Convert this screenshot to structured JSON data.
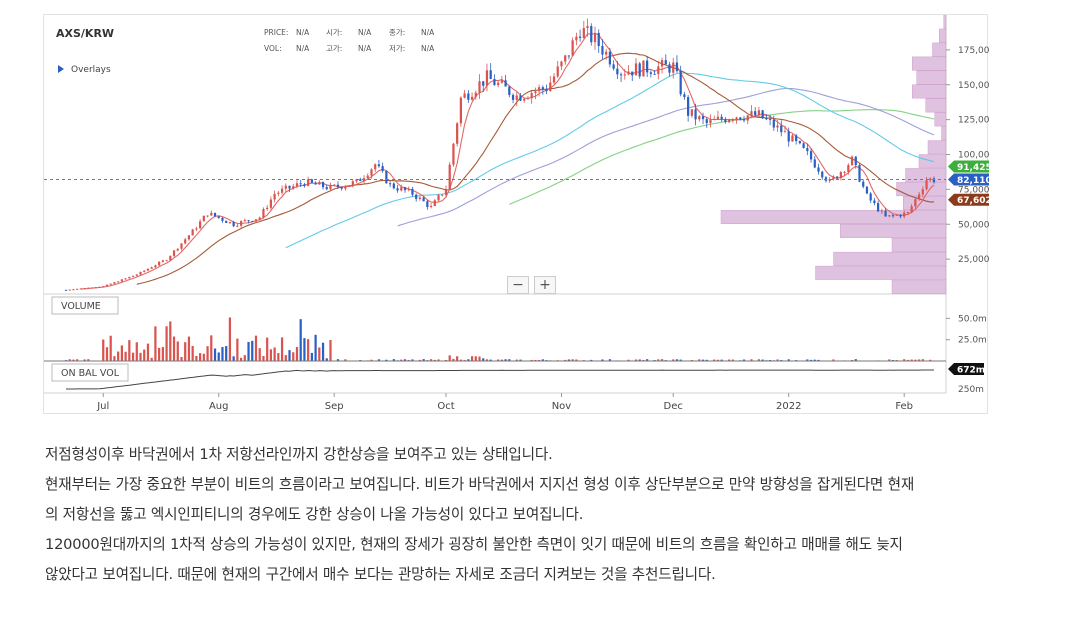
{
  "header": {
    "symbol": "AXS/KRW",
    "price_label": "PRICE:",
    "price_value": "N/A",
    "open_label": "시가:",
    "open_value": "N/A",
    "high_label": "고가:",
    "high_value": "N/A",
    "volume_label": "VOL:",
    "volume_value": "N/A",
    "close_label": "종가:",
    "close_value": "N/A",
    "low_label": "저가:",
    "low_value": "N/A",
    "overlays_label": "Overlays"
  },
  "zoom": {
    "minus": "−",
    "plus": "+"
  },
  "panels": {
    "volume_label": "VOLUME",
    "obv_label": "ON BAL VOL"
  },
  "badges": {
    "ma_top": "91,425",
    "last_price": "82,110",
    "ma_low": "67,602",
    "obv": "672m"
  },
  "colors": {
    "up": "#d9534f",
    "down": "#2a5fc4",
    "ma5": "#e06060",
    "ma20": "#a0522d",
    "ma60": "#5bc8e8",
    "ma90": "#9a9ad8",
    "ma120": "#7fcf7f",
    "profile": "#d8b4d8",
    "badge_green": "#3cae3c",
    "badge_blue": "#2a5fc4",
    "badge_brown": "#8b3a1a"
  },
  "article": {
    "p1": "저점형성이후 바닥권에서 1차 저항선라인까지 강한상승을 보여주고 있는 상태입니다.",
    "p2a": "현재부터는 가장 중요한 부분이 비트의 흐름이라고 보여집니다. 비트가 바닥권에서 지지선 형성 이후 상단부분으로 만약 방향성을 잡게된다면 현재",
    "p2b": "의 저항선을 뚫고 엑시인피티니의 경우에도 강한 상승이 나올 가능성이 있다고 보여집니다.",
    "p3a": "120000원대까지의 1차적 상승의 가능성이 있지만, 현재의 장세가 굉장히 불안한 측면이 잇기 때문에 비트의 흐름을 확인하고 매매를 해도 늦지",
    "p3b": "않았다고 보여집니다. 때문에 현재의 구간에서 매수 보다는 관망하는 자세로 조금더 지켜보는 것을 추천드립니다."
  },
  "chart_data": {
    "type": "candlestick",
    "title": "AXS/KRW",
    "x_ticks": [
      "Jul",
      "Aug",
      "Sep",
      "Oct",
      "Nov",
      "Dec",
      "2022",
      "Feb"
    ],
    "price_ticks": [
      "175,000",
      "150,000",
      "125,000",
      "100,000",
      "75,000",
      "50,000",
      "25,000"
    ],
    "price_tick_values": [
      175000,
      150000,
      125000,
      100000,
      75000,
      50000,
      25000
    ],
    "ylim": [
      0,
      200000
    ],
    "volume_ticks": [
      "50.0m",
      "25.0m"
    ],
    "volume_tick_values": [
      50,
      25
    ],
    "volume_ylim": [
      0,
      75
    ],
    "obv_ticks": [
      "250m"
    ],
    "x_range": [
      "2021-06-21",
      "2022-02-09"
    ],
    "last_price": 82110,
    "close_path": [
      {
        "date": "2021-06-21",
        "value": 3000
      },
      {
        "date": "2021-07-01",
        "value": 5500
      },
      {
        "date": "2021-07-10",
        "value": 14000
      },
      {
        "date": "2021-07-18",
        "value": 25000
      },
      {
        "date": "2021-07-25",
        "value": 45000
      },
      {
        "date": "2021-07-29",
        "value": 58000
      },
      {
        "date": "2021-08-05",
        "value": 50000
      },
      {
        "date": "2021-08-12",
        "value": 55000
      },
      {
        "date": "2021-08-16",
        "value": 72000
      },
      {
        "date": "2021-08-24",
        "value": 80000
      },
      {
        "date": "2021-08-31",
        "value": 76000
      },
      {
        "date": "2021-09-07",
        "value": 80000
      },
      {
        "date": "2021-09-12",
        "value": 93000
      },
      {
        "date": "2021-09-16",
        "value": 78000
      },
      {
        "date": "2021-09-22",
        "value": 72000
      },
      {
        "date": "2021-09-27",
        "value": 62000
      },
      {
        "date": "2021-10-01",
        "value": 76000
      },
      {
        "date": "2021-10-05",
        "value": 140000
      },
      {
        "date": "2021-10-12",
        "value": 155000
      },
      {
        "date": "2021-10-20",
        "value": 142000
      },
      {
        "date": "2021-10-28",
        "value": 148000
      },
      {
        "date": "2021-11-02",
        "value": 168000
      },
      {
        "date": "2021-11-06",
        "value": 190000
      },
      {
        "date": "2021-11-10",
        "value": 182000
      },
      {
        "date": "2021-11-17",
        "value": 160000
      },
      {
        "date": "2021-11-24",
        "value": 162000
      },
      {
        "date": "2021-12-01",
        "value": 163000
      },
      {
        "date": "2021-12-05",
        "value": 130000
      },
      {
        "date": "2021-12-10",
        "value": 122000
      },
      {
        "date": "2021-12-17",
        "value": 128000
      },
      {
        "date": "2021-12-24",
        "value": 128000
      },
      {
        "date": "2021-12-31",
        "value": 115000
      },
      {
        "date": "2022-01-06",
        "value": 100000
      },
      {
        "date": "2022-01-12",
        "value": 80000
      },
      {
        "date": "2022-01-18",
        "value": 96000
      },
      {
        "date": "2022-01-22",
        "value": 70000
      },
      {
        "date": "2022-01-27",
        "value": 55000
      },
      {
        "date": "2022-02-02",
        "value": 58000
      },
      {
        "date": "2022-02-07",
        "value": 82110
      }
    ],
    "series": [
      {
        "name": "MA5",
        "values": []
      },
      {
        "name": "MA20",
        "values": []
      },
      {
        "name": "MA60",
        "values": []
      },
      {
        "name": "MA90",
        "values": []
      },
      {
        "name": "MA120",
        "values": []
      }
    ],
    "volume_profile": [
      {
        "price": 195000,
        "size": 0.01
      },
      {
        "price": 185000,
        "size": 0.03
      },
      {
        "price": 175000,
        "size": 0.06
      },
      {
        "price": 165000,
        "size": 0.15
      },
      {
        "price": 155000,
        "size": 0.13
      },
      {
        "price": 145000,
        "size": 0.15
      },
      {
        "price": 135000,
        "size": 0.09
      },
      {
        "price": 125000,
        "size": 0.05
      },
      {
        "price": 115000,
        "size": 0.02
      },
      {
        "price": 105000,
        "size": 0.08
      },
      {
        "price": 95000,
        "size": 0.12
      },
      {
        "price": 85000,
        "size": 0.18
      },
      {
        "price": 75000,
        "size": 0.22
      },
      {
        "price": 65000,
        "size": 0.19
      },
      {
        "price": 55000,
        "size": 1.0
      },
      {
        "price": 45000,
        "size": 0.47
      },
      {
        "price": 35000,
        "size": 0.24
      },
      {
        "price": 25000,
        "size": 0.5
      },
      {
        "price": 15000,
        "size": 0.58
      },
      {
        "price": 5000,
        "size": 0.24
      }
    ]
  }
}
